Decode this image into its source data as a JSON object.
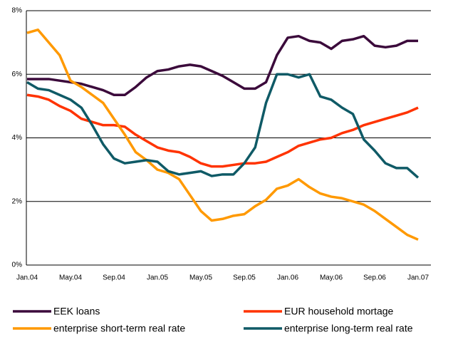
{
  "chart_data": {
    "type": "line",
    "categories": [
      "Jan.04",
      null,
      null,
      null,
      "May.04",
      null,
      null,
      null,
      "Sep.04",
      null,
      null,
      null,
      "Jan.05",
      null,
      null,
      null,
      "May.05",
      null,
      null,
      null,
      "Sep.05",
      null,
      null,
      null,
      "Jan.06",
      null,
      null,
      null,
      "May.06",
      null,
      null,
      null,
      "Sep.06",
      null,
      null,
      null,
      "Jan.07"
    ],
    "ylim": [
      0,
      8
    ],
    "yticks": [
      {
        "value": 0,
        "label": "0%"
      },
      {
        "value": 2,
        "label": "2%"
      },
      {
        "value": 4,
        "label": "4%"
      },
      {
        "value": 6,
        "label": "6%"
      },
      {
        "value": 8,
        "label": "8%"
      }
    ],
    "grid": true,
    "legend": "bottom",
    "series": [
      {
        "name": "EEK loans",
        "color": "#3b0a3b",
        "values": [
          5.85,
          5.85,
          5.85,
          5.8,
          5.75,
          5.7,
          5.6,
          5.5,
          5.35,
          5.35,
          5.6,
          5.9,
          6.1,
          6.15,
          6.25,
          6.3,
          6.25,
          6.1,
          5.95,
          5.75,
          5.55,
          5.55,
          5.75,
          6.6,
          7.15,
          7.2,
          7.05,
          7.0,
          6.8,
          7.05,
          7.1,
          7.2,
          6.9,
          6.85,
          6.9,
          7.05,
          7.05
        ]
      },
      {
        "name": "EUR household mortage",
        "color": "#ff3300",
        "values": [
          5.35,
          5.3,
          5.2,
          5.0,
          4.85,
          4.6,
          4.5,
          4.4,
          4.4,
          4.35,
          4.1,
          3.9,
          3.7,
          3.6,
          3.55,
          3.4,
          3.2,
          3.1,
          3.1,
          3.15,
          3.2,
          3.2,
          3.25,
          3.4,
          3.55,
          3.75,
          3.85,
          3.95,
          4.0,
          4.15,
          4.25,
          4.4,
          4.5,
          4.6,
          4.7,
          4.8,
          4.95
        ]
      },
      {
        "name": "enterprise short-term real rate",
        "color": "#ff9900",
        "values": [
          7.3,
          7.4,
          7.0,
          6.6,
          5.8,
          5.6,
          5.35,
          5.1,
          4.6,
          4.1,
          3.55,
          3.3,
          3.0,
          2.9,
          2.7,
          2.2,
          1.7,
          1.4,
          1.45,
          1.55,
          1.6,
          1.85,
          2.05,
          2.4,
          2.5,
          2.7,
          2.45,
          2.25,
          2.15,
          2.1,
          2.0,
          1.9,
          1.7,
          1.45,
          1.2,
          0.95,
          0.8
        ]
      },
      {
        "name": "enterprise long-term real rate",
        "color": "#0f5a66",
        "values": [
          5.75,
          5.55,
          5.5,
          5.35,
          5.2,
          4.95,
          4.4,
          3.8,
          3.35,
          3.2,
          3.25,
          3.3,
          3.25,
          2.95,
          2.85,
          2.9,
          2.95,
          2.8,
          2.85,
          2.85,
          3.2,
          3.7,
          5.1,
          6.0,
          6.0,
          5.9,
          6.0,
          5.3,
          5.2,
          4.95,
          4.75,
          3.95,
          3.6,
          3.2,
          3.05,
          3.05,
          2.75
        ]
      }
    ]
  }
}
